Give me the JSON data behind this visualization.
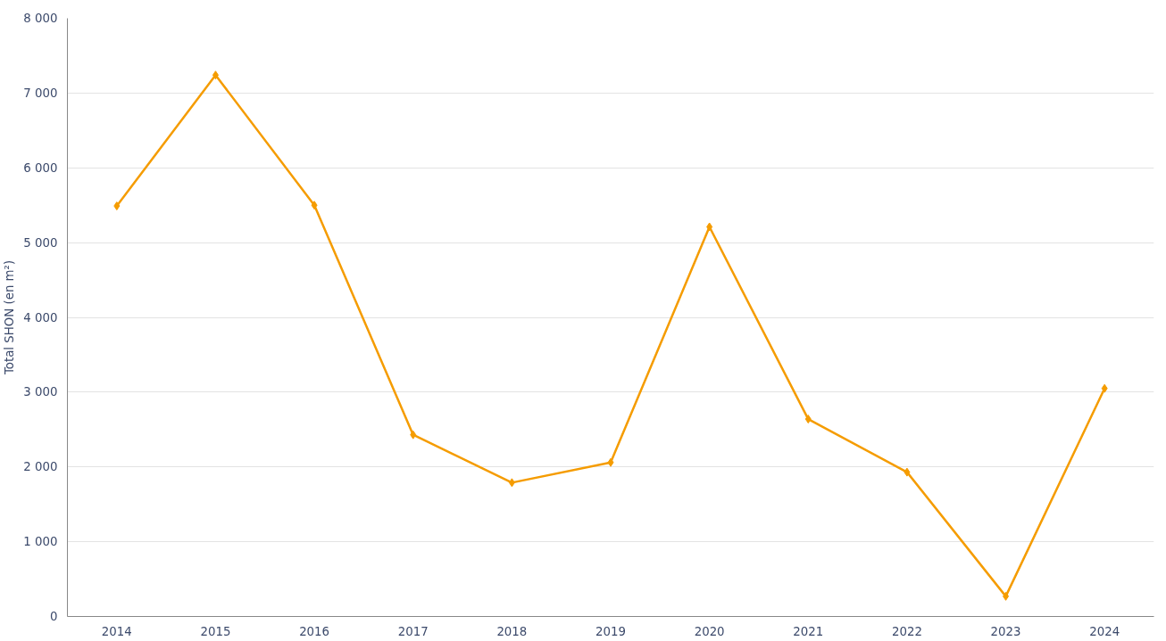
{
  "chart_data": {
    "type": "line",
    "ylabel": "Total SHON (en m²)",
    "categories": [
      "2014",
      "2015",
      "2016",
      "2017",
      "2018",
      "2019",
      "2020",
      "2021",
      "2022",
      "2023",
      "2024"
    ],
    "series": [
      {
        "color": "#f59c00",
        "values": [
          5490,
          7240,
          5500,
          2430,
          1790,
          2060,
          5210,
          2640,
          1930,
          270,
          3050
        ]
      }
    ],
    "ylim": [
      0,
      8000
    ],
    "yticks": [
      {
        "value": 0,
        "label": "0"
      },
      {
        "value": 1000,
        "label": "1 000"
      },
      {
        "value": 2000,
        "label": "2 000"
      },
      {
        "value": 3000,
        "label": "3 000"
      },
      {
        "value": 4000,
        "label": "4 000"
      },
      {
        "value": 5000,
        "label": "5 000"
      },
      {
        "value": 6000,
        "label": "6 000"
      },
      {
        "value": 7000,
        "label": "7 000"
      },
      {
        "value": 8000,
        "label": "8 000"
      }
    ],
    "grid": "y",
    "marker": "diamond",
    "line_style": "solid"
  }
}
